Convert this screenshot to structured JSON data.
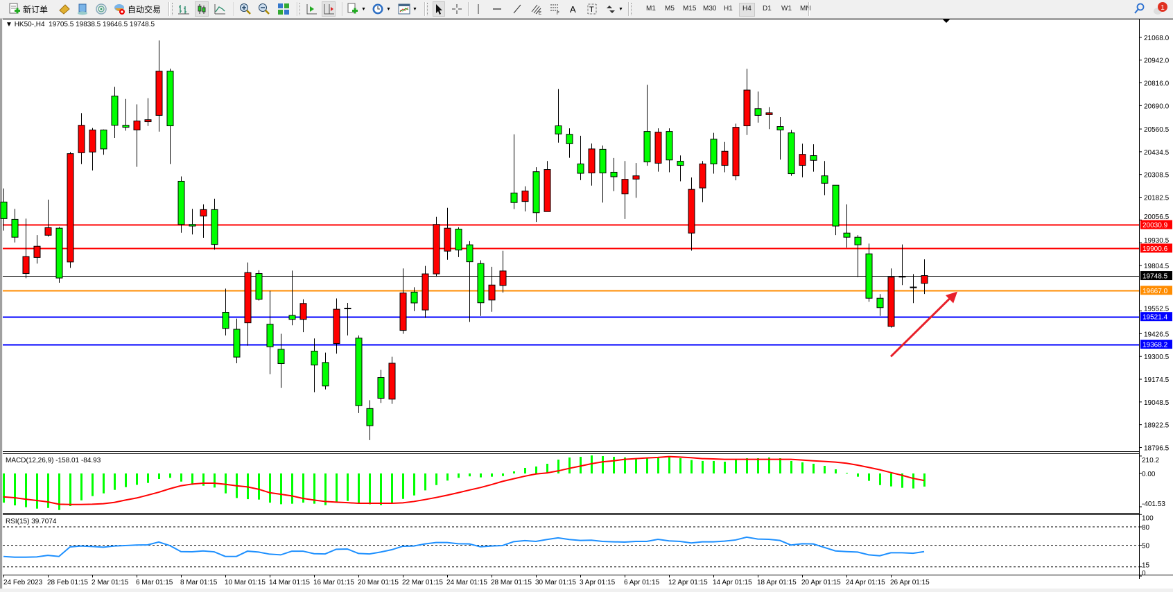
{
  "toolbar": {
    "new_order_label": "新订单",
    "auto_trading_label": "自动交易",
    "timeframes": [
      "M1",
      "M5",
      "M15",
      "M30",
      "H1",
      "H4",
      "D1",
      "W1",
      "MN"
    ],
    "active_timeframe": "H4",
    "notification_count": "1"
  },
  "chart": {
    "symbol_line": "HK50-,H4  19705.5 19838.5 19646.5 19748.5",
    "colors": {
      "bull": "#ff0000",
      "bear": "#00ff00",
      "outline": "#000000",
      "macd_hist": "#00ff00",
      "macd_signal": "#ff0000",
      "rsi": "#1e90ff"
    }
  },
  "chart_data": {
    "type": "candlestick",
    "symbol": "HK50-",
    "timeframe": "H4",
    "ohlc_format": [
      "open",
      "high",
      "low",
      "close"
    ],
    "candles": [
      [
        20156,
        20231,
        19998,
        20064
      ],
      [
        20060,
        20118,
        19932,
        19961
      ],
      [
        19760,
        20064,
        19734,
        19854
      ],
      [
        19849,
        19973,
        19815,
        19911
      ],
      [
        19972,
        20169,
        19964,
        20014
      ],
      [
        20011,
        20018,
        19709,
        19735
      ],
      [
        19824,
        20433,
        19791,
        20424
      ],
      [
        20429,
        20648,
        20366,
        20581
      ],
      [
        20433,
        20566,
        20331,
        20555
      ],
      [
        20555,
        20558,
        20418,
        20450
      ],
      [
        20743,
        20794,
        20511,
        20581
      ],
      [
        20581,
        20727,
        20551,
        20570
      ],
      [
        20555,
        20697,
        20351,
        20605
      ],
      [
        20601,
        20731,
        20577,
        20612
      ],
      [
        20636,
        21051,
        20546,
        20881
      ],
      [
        20881,
        20895,
        20366,
        20578
      ],
      [
        20271,
        20298,
        19986,
        20032
      ],
      [
        20032,
        20118,
        19976,
        20023
      ],
      [
        20078,
        20143,
        19958,
        20114
      ],
      [
        20114,
        20174,
        19892,
        19921
      ],
      [
        19545,
        19676,
        19417,
        19456
      ],
      [
        19451,
        19510,
        19263,
        19297
      ],
      [
        19487,
        19821,
        19360,
        19765
      ],
      [
        19760,
        19778,
        19610,
        19617
      ],
      [
        19479,
        19664,
        19202,
        19354
      ],
      [
        19340,
        19426,
        19126,
        19261
      ],
      [
        19528,
        19776,
        19473,
        19506
      ],
      [
        19506,
        19617,
        19435,
        19594
      ],
      [
        19330,
        19400,
        19102,
        19253
      ],
      [
        19267,
        19322,
        19118,
        19137
      ],
      [
        19372,
        19622,
        19316,
        19562
      ],
      [
        19568,
        19597,
        19417,
        19568
      ],
      [
        19402,
        19417,
        18987,
        19028
      ],
      [
        19012,
        19058,
        18837,
        18917
      ],
      [
        19184,
        19226,
        19043,
        19069
      ],
      [
        19064,
        19299,
        19038,
        19263
      ],
      [
        19445,
        19788,
        19426,
        19652
      ],
      [
        19657,
        19684,
        19552,
        19597
      ],
      [
        19558,
        19802,
        19514,
        19758
      ],
      [
        19758,
        20074,
        19742,
        20032
      ],
      [
        19884,
        20124,
        19836,
        20011
      ],
      [
        20006,
        20016,
        19851,
        19890
      ],
      [
        19919,
        19939,
        19492,
        19825
      ],
      [
        19815,
        19833,
        19525,
        19598
      ],
      [
        19613,
        19797,
        19548,
        19696
      ],
      [
        19694,
        19886,
        19654,
        19774
      ],
      [
        20206,
        20531,
        20117,
        20153
      ],
      [
        20159,
        20243,
        20104,
        20217
      ],
      [
        20324,
        20349,
        20046,
        20097
      ],
      [
        20103,
        20383,
        20103,
        20336
      ],
      [
        20578,
        20782,
        20485,
        20533
      ],
      [
        20531,
        20564,
        20401,
        20479
      ],
      [
        20367,
        20523,
        20277,
        20315
      ],
      [
        20317,
        20480,
        20247,
        20450
      ],
      [
        20448,
        20469,
        20153,
        20317
      ],
      [
        20321,
        20400,
        20216,
        20296
      ],
      [
        20201,
        20383,
        20062,
        20282
      ],
      [
        20283,
        20372,
        20179,
        20301
      ],
      [
        20547,
        20805,
        20357,
        20378
      ],
      [
        20371,
        20564,
        20324,
        20543
      ],
      [
        20547,
        20564,
        20321,
        20389
      ],
      [
        20382,
        20414,
        20271,
        20359
      ],
      [
        19984,
        20292,
        19887,
        20226
      ],
      [
        20234,
        20383,
        20155,
        20367
      ],
      [
        20504,
        20539,
        20313,
        20367
      ],
      [
        20359,
        20489,
        20321,
        20437
      ],
      [
        20301,
        20590,
        20276,
        20570
      ],
      [
        20578,
        20894,
        20527,
        20776
      ],
      [
        20673,
        20768,
        20596,
        20636
      ],
      [
        20640,
        20682,
        20560,
        20650
      ],
      [
        20574,
        20626,
        20391,
        20555
      ],
      [
        20539,
        20555,
        20301,
        20313
      ],
      [
        20359,
        20479,
        20293,
        20420
      ],
      [
        20413,
        20476,
        20324,
        20387
      ],
      [
        20301,
        20383,
        20194,
        20260
      ],
      [
        20249,
        20249,
        19973,
        20023
      ],
      [
        19984,
        20143,
        19903,
        19961
      ],
      [
        19961,
        19973,
        19740,
        19919
      ],
      [
        19869,
        19926,
        19603,
        19623
      ],
      [
        19623,
        19646,
        19525,
        19571
      ],
      [
        19467,
        19788,
        19460,
        19740
      ],
      [
        19744,
        19921,
        19696,
        19744
      ],
      [
        19685,
        19757,
        19596,
        19685
      ],
      [
        19705.5,
        19838.5,
        19646.5,
        19748.5
      ]
    ],
    "price_axis": {
      "ylim": [
        18796.5,
        21068.0
      ],
      "ticks": [
        "21068.0",
        "20942.0",
        "20816.0",
        "20690.0",
        "20560.5",
        "20434.5",
        "20308.5",
        "20182.5",
        "20056.5",
        "19930.5",
        "19804.5",
        "19552.5",
        "19426.5",
        "19300.5",
        "19174.5",
        "19048.5",
        "18922.5",
        "18796.5"
      ]
    },
    "time_axis": {
      "label_every": 4,
      "labels": [
        "24 Feb 2023",
        "28 Feb 01:15",
        "2 Mar 01:15",
        "6 Mar 01:15",
        "8 Mar 01:15",
        "10 Mar 01:15",
        "14 Mar 01:15",
        "16 Mar 01:15",
        "20 Mar 01:15",
        "22 Mar 01:15",
        "24 Mar 01:15",
        "28 Mar 01:15",
        "30 Mar 01:15",
        "3 Apr 01:15",
        "6 Apr 01:15",
        "12 Apr 01:15",
        "14 Apr 01:15",
        "18 Apr 01:15",
        "20 Apr 01:15",
        "24 Apr 01:15",
        "26 Apr 01:15"
      ]
    },
    "horizontal_lines": [
      {
        "price": 20030.9,
        "label": "20030.9",
        "color": "#ff0000",
        "width": 2
      },
      {
        "price": 19900.6,
        "label": "19900.6",
        "color": "#ff0000",
        "width": 2
      },
      {
        "price": 19748.5,
        "label": "19748.5",
        "color": "#000000",
        "width": 1
      },
      {
        "price": 19667.0,
        "label": "19667.0",
        "color": "#ff8c00",
        "width": 2
      },
      {
        "price": 19521.4,
        "label": "19521.4",
        "color": "#0000ff",
        "width": 2
      },
      {
        "price": 19368.2,
        "label": "19368.2",
        "color": "#0000ff",
        "width": 2
      }
    ],
    "arrow": {
      "color": "#e8202a",
      "from": {
        "candle": 80,
        "price": 19300
      },
      "to": {
        "candle": 86,
        "price": 19660
      }
    },
    "macd": {
      "label": "MACD(12,26,9) -158.01 -84.93",
      "ylim": [
        -401.53,
        210.2
      ],
      "ticks": [
        "210.2",
        "0.00",
        "-401.53"
      ],
      "histogram": [
        -352,
        -385,
        -407,
        -424,
        -416,
        -441,
        -393,
        -324,
        -273,
        -240,
        -198,
        -165,
        -137,
        -114,
        -67,
        -53,
        -98,
        -137,
        -148,
        -170,
        -240,
        -296,
        -310,
        -315,
        -352,
        -371,
        -365,
        -352,
        -365,
        -382,
        -352,
        -332,
        -365,
        -371,
        -382,
        -354,
        -307,
        -265,
        -204,
        -140,
        -86,
        -53,
        -35,
        -47,
        -39,
        -31,
        25,
        67,
        84,
        117,
        167,
        193,
        201,
        218,
        209,
        201,
        193,
        184,
        184,
        193,
        201,
        184,
        162,
        151,
        151,
        142,
        162,
        184,
        184,
        193,
        184,
        151,
        134,
        117,
        92,
        50,
        8,
        -39,
        -89,
        -140,
        -156,
        -173,
        -181,
        -158
      ],
      "signal": [
        -282,
        -293,
        -310,
        -326,
        -343,
        -371,
        -374,
        -374,
        -371,
        -365,
        -349,
        -321,
        -296,
        -262,
        -226,
        -184,
        -148,
        -128,
        -117,
        -117,
        -131,
        -148,
        -162,
        -190,
        -232,
        -251,
        -271,
        -301,
        -321,
        -338,
        -346,
        -352,
        -360,
        -360,
        -360,
        -360,
        -354,
        -338,
        -315,
        -290,
        -262,
        -232,
        -200,
        -170,
        -134,
        -95,
        -64,
        -33,
        -6,
        6,
        31,
        61,
        89,
        117,
        140,
        153,
        170,
        179,
        187,
        193,
        204,
        198,
        190,
        179,
        176,
        170,
        170,
        170,
        170,
        170,
        170,
        170,
        162,
        153,
        145,
        137,
        123,
        100,
        73,
        45,
        11,
        -22,
        -59,
        -85
      ]
    },
    "rsi": {
      "label": "RSI(15) 39.7074",
      "ylim": [
        0,
        100
      ],
      "ticks": [
        "100",
        "80",
        "50",
        "15",
        "0"
      ],
      "levels": [
        80,
        50,
        15
      ],
      "values": [
        31.9,
        30.7,
        30.7,
        31.1,
        33.7,
        31.9,
        47.4,
        48.9,
        48.1,
        47.0,
        48.9,
        49.6,
        50.4,
        50.8,
        55.3,
        49.6,
        39.8,
        39.4,
        40.9,
        39.4,
        31.9,
        31.9,
        40.5,
        39.0,
        35.6,
        34.5,
        40.5,
        40.5,
        36.4,
        36.0,
        43.6,
        44.0,
        36.8,
        36.0,
        39.0,
        42.8,
        48.5,
        48.9,
        52.3,
        54.5,
        54.5,
        52.6,
        52.3,
        47.7,
        48.9,
        49.6,
        56.0,
        57.6,
        56.4,
        59.5,
        62.1,
        59.5,
        57.9,
        58.3,
        56.4,
        55.7,
        55.3,
        56.4,
        56.4,
        59.8,
        57.2,
        56.4,
        53.8,
        55.7,
        55.7,
        56.8,
        58.7,
        63.2,
        60.2,
        59.8,
        57.9,
        50.4,
        52.6,
        52.3,
        46.6,
        40.9,
        39.8,
        39.0,
        34.5,
        33.0,
        37.9,
        37.9,
        37.1,
        39.7
      ]
    }
  }
}
